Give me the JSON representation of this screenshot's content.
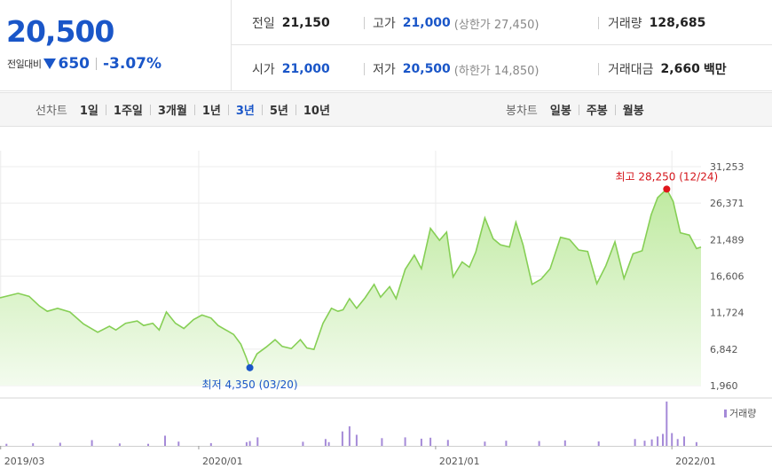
{
  "quote": {
    "price": "20,500",
    "change_label": "전일대비",
    "change_amount": "650",
    "change_percent": "-3.07%",
    "stats": {
      "prev_close_label": "전일",
      "prev_close": "21,150",
      "high_label": "고가",
      "high": "21,000",
      "upper_limit_text": "(상한가 27,450)",
      "volume_label": "거래량",
      "volume": "128,685",
      "open_label": "시가",
      "open": "21,000",
      "low_label": "저가",
      "low": "20,500",
      "lower_limit_text": "(하한가 14,850)",
      "amount_label": "거래대금",
      "amount": "2,660",
      "amount_unit": "백만"
    }
  },
  "tabs": {
    "line_chart_label": "선차트",
    "periods": [
      "1일",
      "1주일",
      "3개월",
      "1년",
      "3년",
      "5년",
      "10년"
    ],
    "active_period": "3년",
    "candle_chart_label": "봉차트",
    "candle_periods": [
      "일봉",
      "주봉",
      "월봉"
    ]
  },
  "colors": {
    "price_down": "#1a56c8",
    "line": "#86cf55",
    "area_top": "#bfeaa0",
    "area_bottom": "#f3fbee",
    "volume_bar": "#a58ad8",
    "high_marker": "#e0161b",
    "low_marker": "#1a56c8"
  },
  "chart_data": {
    "type": "area",
    "y_ticks": [
      "31,253",
      "26,371",
      "21,489",
      "16,606",
      "11,724",
      "6,842",
      "1,960"
    ],
    "ylim": [
      1960,
      31253
    ],
    "x_ticks": [
      "2019/03",
      "2020/01",
      "2021/01",
      "2022/01"
    ],
    "x_tick_dates": [
      "2019-03-01",
      "2020-01-01",
      "2021-01-01",
      "2022-01-01"
    ],
    "xlim": [
      "2019-02-28",
      "2022-02-15"
    ],
    "grid": true,
    "annotations": {
      "high": {
        "text": "최고 28,250 (12/24)",
        "date": "2021-12-24",
        "value": 28250
      },
      "low": {
        "text": "최저 4,350 (03/20)",
        "date": "2020-03-20",
        "value": 4350
      }
    },
    "price_series": {
      "x": [
        "2019-02-28",
        "2019-03-28",
        "2019-04-14",
        "2019-04-30",
        "2019-05-12",
        "2019-05-28",
        "2019-06-16",
        "2019-07-07",
        "2019-07-29",
        "2019-08-16",
        "2019-08-26",
        "2019-09-10",
        "2019-09-28",
        "2019-10-08",
        "2019-10-22",
        "2019-11-01",
        "2019-11-12",
        "2019-11-26",
        "2019-12-09",
        "2019-12-24",
        "2020-01-06",
        "2020-01-20",
        "2020-01-31",
        "2020-02-14",
        "2020-02-24",
        "2020-03-06",
        "2020-03-14",
        "2020-03-20",
        "2020-03-31",
        "2020-04-14",
        "2020-04-28",
        "2020-05-09",
        "2020-05-23",
        "2020-06-06",
        "2020-06-16",
        "2020-06-27",
        "2020-07-11",
        "2020-07-24",
        "2020-08-03",
        "2020-08-11",
        "2020-08-21",
        "2020-09-01",
        "2020-09-14",
        "2020-09-28",
        "2020-10-08",
        "2020-10-22",
        "2020-11-01",
        "2020-11-15",
        "2020-11-29",
        "2020-12-10",
        "2020-12-24",
        "2021-01-07",
        "2021-01-18",
        "2021-01-28",
        "2021-02-11",
        "2021-02-22",
        "2021-03-04",
        "2021-03-18",
        "2021-03-31",
        "2021-04-11",
        "2021-04-25",
        "2021-05-05",
        "2021-05-16",
        "2021-05-30",
        "2021-06-13",
        "2021-06-27",
        "2021-07-13",
        "2021-07-27",
        "2021-08-10",
        "2021-08-24",
        "2021-09-07",
        "2021-09-21",
        "2021-10-05",
        "2021-10-19",
        "2021-11-02",
        "2021-11-16",
        "2021-11-30",
        "2021-12-10",
        "2021-12-24",
        "2022-01-03",
        "2022-01-14",
        "2022-01-28",
        "2022-02-08",
        "2022-02-15"
      ],
      "y": [
        13700,
        14300,
        13900,
        12600,
        11900,
        12300,
        11800,
        10200,
        9100,
        9900,
        9400,
        10300,
        10600,
        10000,
        10300,
        9400,
        11800,
        10300,
        9600,
        10800,
        11400,
        11000,
        10000,
        9300,
        8800,
        7500,
        5800,
        4350,
        6200,
        7100,
        8100,
        7200,
        6900,
        8100,
        7000,
        6800,
        10300,
        12300,
        11900,
        12100,
        13600,
        12300,
        13700,
        15500,
        13800,
        15200,
        13600,
        17500,
        19400,
        17600,
        23000,
        21400,
        22500,
        16500,
        18500,
        17800,
        19800,
        24400,
        21600,
        20800,
        20500,
        23800,
        20800,
        15500,
        16200,
        17600,
        21800,
        21500,
        20100,
        19900,
        15600,
        18000,
        21200,
        16300,
        19600,
        20000,
        24800,
        27100,
        28250,
        26600,
        22400,
        22100,
        20300,
        20500
      ]
    },
    "volume_series": {
      "label": "거래량",
      "x": [
        "2019-03-10",
        "2019-04-20",
        "2019-06-01",
        "2019-07-20",
        "2019-09-01",
        "2019-10-15",
        "2019-11-10",
        "2019-12-01",
        "2020-01-20",
        "2020-03-15",
        "2020-03-20",
        "2020-04-01",
        "2020-06-10",
        "2020-07-15",
        "2020-07-20",
        "2020-08-10",
        "2020-08-21",
        "2020-09-01",
        "2020-10-10",
        "2020-11-15",
        "2020-12-10",
        "2020-12-24",
        "2021-01-20",
        "2021-03-18",
        "2021-04-20",
        "2021-06-10",
        "2021-07-20",
        "2021-09-10",
        "2021-11-05",
        "2021-11-20",
        "2021-12-01",
        "2021-12-10",
        "2021-12-18",
        "2021-12-24",
        "2022-01-01",
        "2022-01-10",
        "2022-01-20",
        "2022-02-08"
      ],
      "y": [
        12,
        15,
        18,
        34,
        14,
        12,
        60,
        25,
        16,
        22,
        28,
        50,
        24,
        40,
        22,
        85,
        115,
        65,
        45,
        50,
        42,
        48,
        35,
        25,
        30,
        28,
        32,
        26,
        40,
        30,
        38,
        55,
        70,
        260,
        75,
        40,
        55,
        22
      ]
    }
  }
}
